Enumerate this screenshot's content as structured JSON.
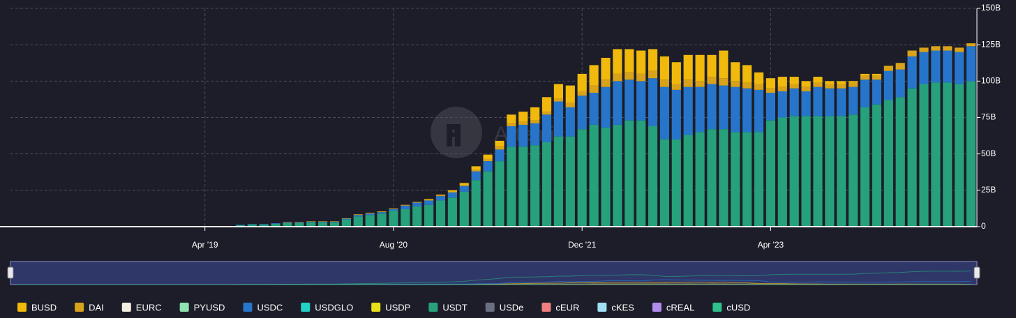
{
  "chart_data": {
    "type": "stacked_bar",
    "watermark": "Artemis",
    "categories": [
      null,
      null,
      null,
      null,
      null,
      null,
      null,
      null,
      null,
      null,
      null,
      null,
      null,
      null,
      null,
      null,
      "Apr '19",
      null,
      null,
      null,
      null,
      null,
      null,
      null,
      null,
      null,
      null,
      null,
      null,
      null,
      null,
      null,
      "Aug '20",
      null,
      null,
      null,
      null,
      null,
      null,
      null,
      null,
      null,
      null,
      null,
      null,
      null,
      null,
      null,
      "Dec '21",
      null,
      null,
      null,
      null,
      null,
      null,
      null,
      null,
      null,
      null,
      null,
      null,
      null,
      null,
      null,
      "Apr '23",
      null,
      null,
      null,
      null,
      null,
      null,
      null,
      null,
      null,
      null,
      null,
      null,
      null,
      null,
      null,
      null,
      null
    ],
    "ylim": [
      0,
      150
    ],
    "yticks": [
      0,
      {
        "value": 25,
        "label": "25B"
      },
      {
        "value": 50,
        "label": "50B"
      },
      {
        "value": 75,
        "label": "75B"
      },
      {
        "value": 100,
        "label": "100B"
      },
      {
        "value": 125,
        "label": "125B"
      },
      {
        "value": 150,
        "label": "150B"
      }
    ],
    "grid": true,
    "legend": "bottom",
    "series": [
      {
        "name": "BUSD",
        "color": "#f0b90b",
        "values": [
          0,
          0,
          0,
          0,
          0,
          0,
          0,
          0,
          0,
          0,
          0,
          0,
          0,
          0,
          0,
          0,
          0,
          0,
          0,
          0,
          0,
          0,
          0,
          0,
          0,
          0,
          0,
          0,
          0,
          0,
          0,
          0,
          0,
          0,
          0,
          0.5,
          0.5,
          1,
          1.5,
          2.5,
          3,
          4,
          6,
          7,
          9,
          10,
          10,
          12,
          12,
          14,
          15,
          17,
          16,
          16,
          15,
          16,
          15,
          17,
          18,
          15,
          19,
          13,
          12,
          8,
          7,
          7,
          5,
          4,
          4,
          2,
          2,
          1,
          1,
          1,
          0.5,
          0.5,
          0,
          0,
          0,
          0,
          0,
          0
        ]
      },
      {
        "name": "DAI",
        "color": "#d9a21b",
        "values": [
          0,
          0,
          0,
          0,
          0,
          0,
          0,
          0,
          0,
          0,
          0,
          0,
          0,
          0,
          0,
          0,
          0,
          0,
          0,
          0,
          0,
          0,
          0,
          0.3,
          0.3,
          0.3,
          0.3,
          0.3,
          0.3,
          0.5,
          0.5,
          0.5,
          0.5,
          0.5,
          0.5,
          0.5,
          0.5,
          0.5,
          0.5,
          1,
          1.5,
          2,
          2,
          2,
          2,
          2,
          2,
          3,
          3,
          5,
          5,
          5,
          5,
          5,
          5,
          5,
          4,
          5,
          4,
          5,
          5,
          4,
          4,
          4,
          3,
          3,
          3,
          3,
          3,
          3,
          3,
          3,
          3,
          3,
          3,
          4,
          4,
          3,
          3,
          3,
          3,
          2
        ]
      },
      {
        "name": "EURC",
        "color": "#f3efe3",
        "values": [
          0,
          0,
          0,
          0,
          0,
          0,
          0,
          0,
          0,
          0,
          0,
          0,
          0,
          0,
          0,
          0,
          0,
          0,
          0,
          0,
          0,
          0,
          0,
          0,
          0,
          0,
          0,
          0,
          0,
          0,
          0,
          0,
          0,
          0,
          0,
          0,
          0,
          0,
          0,
          0,
          0,
          0,
          0,
          0,
          0,
          0,
          0,
          0,
          0,
          0,
          0,
          0,
          0,
          0,
          0,
          0,
          0,
          0,
          0,
          0,
          0,
          0,
          0,
          0,
          0,
          0,
          0,
          0,
          0,
          0,
          0,
          0,
          0,
          0,
          0,
          0,
          0,
          0,
          0,
          0,
          0,
          0
        ]
      },
      {
        "name": "PYUSD",
        "color": "#8fe3b0",
        "values": [
          0,
          0,
          0,
          0,
          0,
          0,
          0,
          0,
          0,
          0,
          0,
          0,
          0,
          0,
          0,
          0,
          0,
          0,
          0,
          0,
          0,
          0,
          0,
          0,
          0,
          0,
          0,
          0,
          0,
          0,
          0,
          0,
          0,
          0,
          0,
          0,
          0,
          0,
          0,
          0,
          0,
          0,
          0,
          0,
          0,
          0,
          0,
          0,
          0,
          0,
          0,
          0,
          0,
          0,
          0,
          0,
          0,
          0,
          0,
          0,
          0,
          0,
          0,
          0,
          0,
          0,
          0,
          0,
          0,
          0,
          0,
          0,
          0,
          0,
          0,
          0,
          0,
          0,
          0,
          0,
          0,
          0
        ]
      },
      {
        "name": "USDC",
        "color": "#2775ca",
        "values": [
          0,
          0,
          0,
          0,
          0,
          0,
          0,
          0,
          0,
          0,
          0,
          0,
          0,
          0,
          0,
          0,
          0,
          0,
          0,
          0.3,
          0.3,
          0.3,
          0.4,
          0.4,
          0.4,
          0.4,
          0.4,
          0.4,
          0.5,
          1,
          1,
          1,
          1,
          2.5,
          2.5,
          3,
          3,
          3.5,
          4,
          6,
          7,
          8,
          14,
          15,
          15,
          19,
          24,
          20,
          23,
          22,
          28,
          30,
          28,
          27,
          33,
          36,
          34,
          33,
          31,
          31,
          30,
          31,
          30,
          29,
          19,
          18,
          19,
          17,
          20,
          19,
          19,
          19,
          19,
          17,
          20,
          19,
          22,
          22,
          22,
          22,
          22,
          24
        ]
      },
      {
        "name": "USDGLO",
        "color": "#22d3c5",
        "values": [
          0,
          0,
          0,
          0,
          0,
          0,
          0,
          0,
          0,
          0,
          0,
          0,
          0,
          0,
          0,
          0,
          0,
          0,
          0,
          0,
          0,
          0,
          0,
          0,
          0,
          0,
          0,
          0,
          0,
          0,
          0,
          0,
          0,
          0,
          0,
          0,
          0,
          0,
          0,
          0,
          0,
          0,
          0,
          0,
          0,
          0,
          0,
          0,
          0,
          0,
          0,
          0,
          0,
          0,
          0,
          0,
          0,
          0,
          0,
          0,
          0,
          0,
          0,
          0,
          0,
          0,
          0,
          0,
          0,
          0,
          0,
          0,
          0,
          0,
          0,
          0,
          0,
          0,
          0,
          0,
          0,
          0
        ]
      },
      {
        "name": "USDP",
        "color": "#e8e01a",
        "values": [
          0,
          0,
          0,
          0,
          0,
          0,
          0,
          0,
          0,
          0,
          0,
          0,
          0,
          0,
          0,
          0,
          0,
          0,
          0,
          0,
          0,
          0,
          0,
          0,
          0,
          0,
          0,
          0,
          0,
          0,
          0,
          0,
          0,
          0,
          0,
          0,
          0,
          0,
          0,
          0,
          0,
          0,
          0,
          0,
          0,
          0,
          0,
          0,
          0,
          0,
          0,
          0,
          0,
          0,
          0,
          0,
          0,
          0,
          0,
          0,
          0,
          0,
          0,
          0,
          0,
          0,
          0,
          0,
          0,
          0,
          0,
          0,
          0,
          0,
          0,
          0,
          0,
          0,
          0,
          0,
          0,
          0
        ]
      },
      {
        "name": "USDT",
        "color": "#26a17b",
        "values": [
          0,
          0,
          0,
          0,
          0,
          0,
          0,
          0,
          0,
          0,
          0,
          0,
          0,
          0,
          0,
          0,
          0,
          0,
          0,
          1,
          1.5,
          1.5,
          2,
          2.5,
          2.5,
          3,
          3,
          3,
          5,
          7,
          8,
          9,
          11,
          12,
          14,
          15,
          18,
          20,
          24,
          32,
          38,
          45,
          55,
          55,
          56,
          58,
          62,
          62,
          67,
          70,
          68,
          70,
          73,
          73,
          69,
          60,
          60,
          63,
          65,
          67,
          67,
          65,
          65,
          65,
          73,
          75,
          76,
          76,
          76,
          76,
          76,
          77,
          82,
          84,
          87,
          89,
          95,
          98,
          99,
          99,
          98,
          100
        ]
      },
      {
        "name": "USDe",
        "color": "#6b7080",
        "values": [
          0,
          0,
          0,
          0,
          0,
          0,
          0,
          0,
          0,
          0,
          0,
          0,
          0,
          0,
          0,
          0,
          0,
          0,
          0,
          0,
          0,
          0,
          0,
          0,
          0,
          0,
          0,
          0,
          0,
          0,
          0,
          0,
          0,
          0,
          0,
          0,
          0,
          0,
          0,
          0,
          0,
          0,
          0,
          0,
          0,
          0,
          0,
          0,
          0,
          0,
          0,
          0,
          0,
          0,
          0,
          0,
          0,
          0,
          0,
          0,
          0,
          0,
          0,
          0,
          0,
          0,
          0,
          0,
          0,
          0,
          0,
          0,
          0,
          0,
          0,
          0,
          0,
          0,
          0,
          0,
          0,
          0
        ]
      },
      {
        "name": "cEUR",
        "color": "#f07f7f",
        "values": [
          0,
          0,
          0,
          0,
          0,
          0,
          0,
          0,
          0,
          0,
          0,
          0,
          0,
          0,
          0,
          0,
          0,
          0,
          0,
          0,
          0,
          0,
          0,
          0,
          0,
          0,
          0,
          0,
          0,
          0,
          0,
          0,
          0,
          0,
          0,
          0,
          0,
          0,
          0,
          0,
          0,
          0,
          0,
          0,
          0,
          0,
          0,
          0,
          0,
          0,
          0,
          0,
          0,
          0,
          0,
          0,
          0,
          0,
          0,
          0,
          0,
          0,
          0,
          0,
          0,
          0,
          0,
          0,
          0,
          0,
          0,
          0,
          0,
          0,
          0,
          0,
          0,
          0,
          0,
          0,
          0,
          0
        ]
      },
      {
        "name": "cKES",
        "color": "#9fe0f5",
        "values": [
          0,
          0,
          0,
          0,
          0,
          0,
          0,
          0,
          0,
          0,
          0,
          0,
          0,
          0,
          0,
          0,
          0,
          0,
          0,
          0,
          0,
          0,
          0,
          0,
          0,
          0,
          0,
          0,
          0,
          0,
          0,
          0,
          0,
          0,
          0,
          0,
          0,
          0,
          0,
          0,
          0,
          0,
          0,
          0,
          0,
          0,
          0,
          0,
          0,
          0,
          0,
          0,
          0,
          0,
          0,
          0,
          0,
          0,
          0,
          0,
          0,
          0,
          0,
          0,
          0,
          0,
          0,
          0,
          0,
          0,
          0,
          0,
          0,
          0,
          0,
          0,
          0,
          0,
          0,
          0,
          0,
          0
        ]
      },
      {
        "name": "cREAL",
        "color": "#b38cf0",
        "values": [
          0,
          0,
          0,
          0,
          0,
          0,
          0,
          0,
          0,
          0,
          0,
          0,
          0,
          0,
          0,
          0,
          0,
          0,
          0,
          0,
          0,
          0,
          0,
          0,
          0,
          0,
          0,
          0,
          0,
          0,
          0,
          0,
          0,
          0,
          0,
          0,
          0,
          0,
          0,
          0,
          0,
          0,
          0,
          0,
          0,
          0,
          0,
          0,
          0,
          0,
          0,
          0,
          0,
          0,
          0,
          0,
          0,
          0,
          0,
          0,
          0,
          0,
          0,
          0,
          0,
          0,
          0,
          0,
          0,
          0,
          0,
          0,
          0,
          0,
          0,
          0,
          0,
          0,
          0,
          0,
          0,
          0
        ]
      },
      {
        "name": "cUSD",
        "color": "#2fc08a",
        "values": [
          0,
          0,
          0,
          0,
          0,
          0,
          0,
          0,
          0,
          0,
          0,
          0,
          0,
          0,
          0,
          0,
          0,
          0,
          0,
          0,
          0,
          0,
          0,
          0,
          0,
          0,
          0,
          0,
          0,
          0,
          0,
          0,
          0,
          0,
          0,
          0,
          0,
          0,
          0,
          0,
          0,
          0,
          0,
          0,
          0,
          0,
          0,
          0,
          0,
          0,
          0,
          0,
          0,
          0,
          0,
          0,
          0,
          0,
          0,
          0,
          0,
          0,
          0,
          0,
          0,
          0,
          0,
          0,
          0,
          0,
          0,
          0,
          0,
          0,
          0,
          0,
          0,
          0,
          0,
          0,
          0,
          0
        ]
      }
    ]
  }
}
